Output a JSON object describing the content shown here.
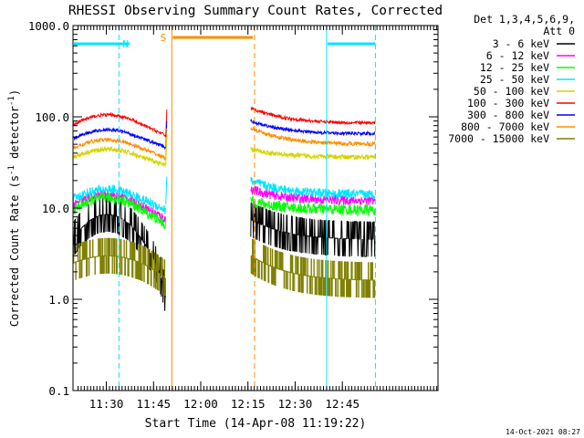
{
  "chart_data": {
    "type": "line",
    "title": "RHESSI Observing Summary Count Rates, Corrected",
    "xlabel": "Start Time (14-Apr-08 11:19:22)",
    "ylabel_main": "Corrected Count Rate (s",
    "ylabel_sup1": "-1",
    "ylabel_mid": " detector",
    "ylabel_sup2": "-1",
    "ylabel_end": ")",
    "y_scale": "log",
    "ylim": [
      0.1,
      1000
    ],
    "xlim_minutes": [
      0,
      116
    ],
    "y_ticks": [
      {
        "value": 0.1,
        "label": "0.1"
      },
      {
        "value": 1,
        "label": "1.0"
      },
      {
        "value": 10,
        "label": "10.0"
      },
      {
        "value": 100,
        "label": "100.0"
      },
      {
        "value": 1000,
        "label": "1000.0"
      }
    ],
    "x_ticks": [
      {
        "value": 10.6,
        "label": "11:30"
      },
      {
        "value": 25.6,
        "label": "11:45"
      },
      {
        "value": 40.6,
        "label": "12:00"
      },
      {
        "value": 55.6,
        "label": "12:15"
      },
      {
        "value": 70.6,
        "label": "12:30"
      },
      {
        "value": 85.6,
        "label": "12:45"
      }
    ],
    "legend_header": [
      "Det 1,3,4,5,6,9,",
      "Att 0"
    ],
    "series": [
      {
        "name": "3 - 6 keV",
        "color": "#000000",
        "a": [
          4.5,
          8.5,
          5.0
        ],
        "b": [
          7.5,
          4.5
        ],
        "noise": 0.28
      },
      {
        "name": "6 - 12 keV",
        "color": "#ff00ff",
        "a": [
          10.5,
          14.0,
          11.0
        ],
        "b": [
          16.0,
          12.0
        ],
        "noise": 0.12
      },
      {
        "name": "12 - 25 keV",
        "color": "#00ff00",
        "a": [
          9.5,
          13.0,
          10.0
        ],
        "b": [
          12.0,
          9.5
        ],
        "noise": 0.14
      },
      {
        "name": "25 - 50 keV",
        "color": "#00e5ff",
        "a": [
          12.5,
          16.0,
          13.0
        ],
        "b": [
          20.0,
          14.0
        ],
        "noise": 0.12
      },
      {
        "name": "50 - 100 keV",
        "color": "#d4d400",
        "a": [
          36.0,
          44.0,
          37.0
        ],
        "b": [
          44.0,
          36.0
        ],
        "noise": 0.06
      },
      {
        "name": "100 - 300 keV",
        "color": "#ff0000",
        "a": [
          82.0,
          105.0,
          85.0
        ],
        "b": [
          125.0,
          85.0
        ],
        "noise": 0.04
      },
      {
        "name": "300 - 800 keV",
        "color": "#0000ff",
        "a": [
          58.0,
          72.0,
          60.0
        ],
        "b": [
          90.0,
          65.0
        ],
        "noise": 0.04
      },
      {
        "name": "800 - 7000 keV",
        "color": "#ff8c00",
        "a": [
          45.0,
          56.0,
          46.0
        ],
        "b": [
          75.0,
          50.0
        ],
        "noise": 0.05
      },
      {
        "name": "7000 - 15000 keV",
        "color": "#808000",
        "a": [
          2.5,
          3.0,
          2.2
        ],
        "b": [
          3.0,
          1.6
        ],
        "noise": 0.45
      }
    ],
    "segments": {
      "a": [
        0,
        29.5
      ],
      "b": [
        56.5,
        85.0,
        96.0
      ]
    },
    "markers": [
      {
        "type": "night",
        "color": "#00e5ff",
        "start": 0,
        "end": 14.6,
        "label": "N"
      },
      {
        "type": "night",
        "color": "#00e5ff",
        "start": 80.6,
        "end": 96.1,
        "label": ""
      },
      {
        "type": "saa",
        "color": "#ff8c00",
        "start": 31.4,
        "end": 57.7,
        "label": "S"
      }
    ],
    "footer_date": "14-Oct-2021 08:27"
  }
}
